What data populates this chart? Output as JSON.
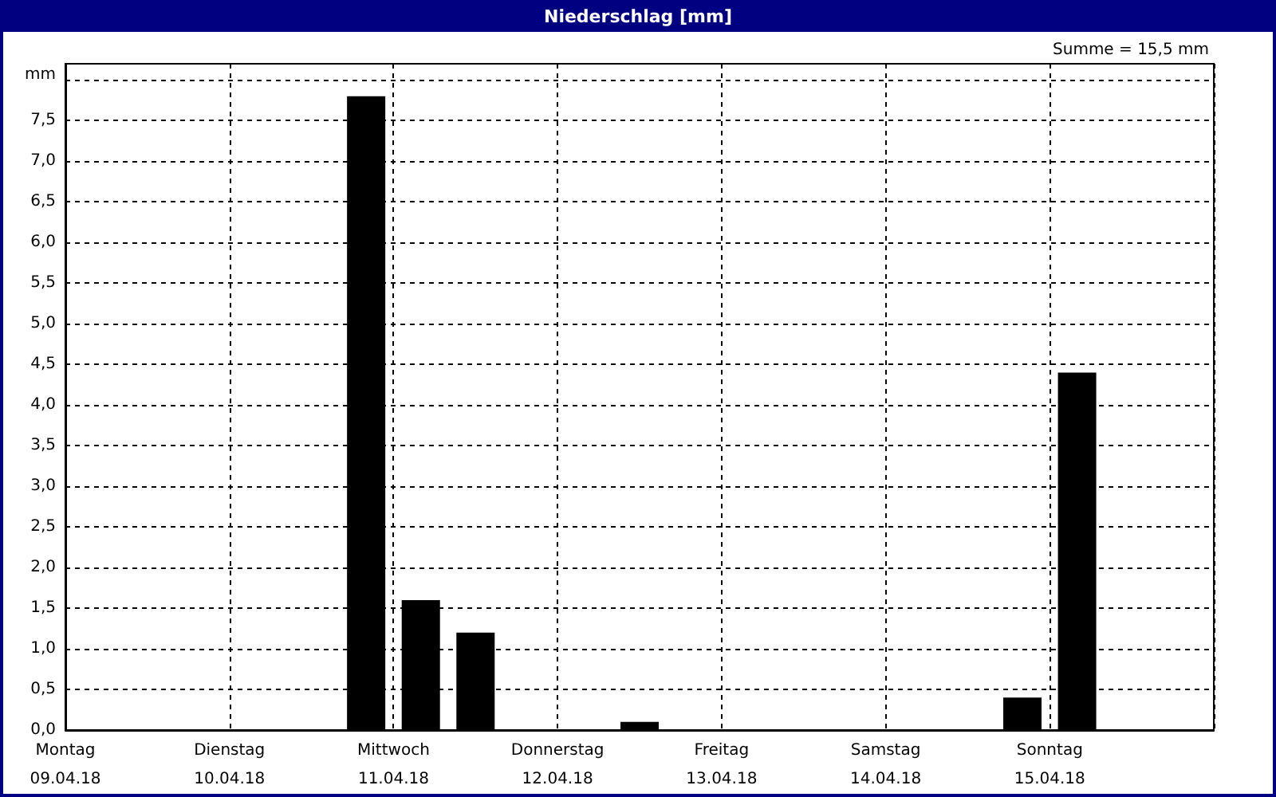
{
  "chart_data": {
    "type": "bar",
    "title": "Niederschlag [mm]",
    "ylabel": "mm",
    "annotations": [
      "Summe = 15,5 mm"
    ],
    "categories": [
      "Montag\n09.04.18",
      null,
      null,
      "Dienstag\n10.04.18",
      null,
      null,
      "Mittwoch\n11.04.18",
      null,
      null,
      "Donnerstag\n12.04.18",
      null,
      null,
      "Freitag\n13.04.18",
      null,
      null,
      "Samstag\n14.04.18",
      null,
      null,
      "Sonntag\n15.04.18",
      null,
      null
    ],
    "values": [
      0,
      0,
      0,
      0,
      0,
      7.8,
      1.6,
      1.2,
      0,
      0,
      0.1,
      0,
      0,
      0,
      0,
      0,
      0,
      0.4,
      4.4,
      0,
      0
    ],
    "color": "#000000",
    "ylim": [
      0,
      8.2
    ],
    "yticks": [
      {
        "value": 0,
        "label": "0,0"
      },
      {
        "value": 0.5,
        "label": "0,5"
      },
      {
        "value": 1,
        "label": "1,0"
      },
      {
        "value": 1.5,
        "label": "1,5"
      },
      {
        "value": 2,
        "label": "2,0"
      },
      {
        "value": 2.5,
        "label": "2,5"
      },
      {
        "value": 3,
        "label": "3,0"
      },
      {
        "value": 3.5,
        "label": "3,5"
      },
      {
        "value": 4,
        "label": "4,0"
      },
      {
        "value": 4.5,
        "label": "4,5"
      },
      {
        "value": 5,
        "label": "5,0"
      },
      {
        "value": 5.5,
        "label": "5,5"
      },
      {
        "value": 6,
        "label": "6,0"
      },
      {
        "value": 6.5,
        "label": "6,5"
      },
      {
        "value": 7,
        "label": "7,0"
      },
      {
        "value": 7.5,
        "label": "7,5"
      },
      {
        "value": 8,
        "label": null
      }
    ],
    "grid": true
  }
}
